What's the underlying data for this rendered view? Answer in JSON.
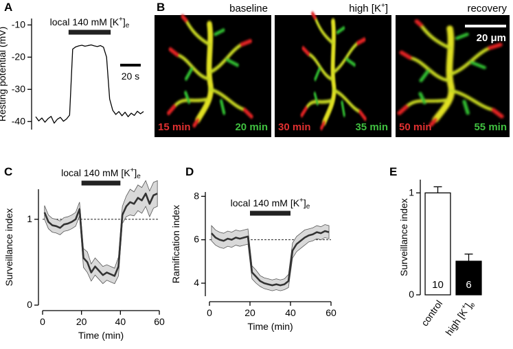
{
  "chart_data": [
    {
      "type": "line",
      "panel": "A",
      "ylabel": "Resting potential (mV)",
      "xlim": [
        0,
        107
      ],
      "ylim": [
        -42.5,
        -8
      ],
      "yticks": [
        -40,
        -30,
        -20,
        -10
      ],
      "x": [
        0,
        3,
        6,
        9,
        12,
        15,
        18,
        21,
        24,
        27,
        30,
        33,
        36,
        39,
        42,
        45,
        48,
        51,
        54,
        57,
        60,
        63,
        66,
        69,
        72,
        75,
        78,
        81,
        84,
        87,
        90,
        93,
        96,
        99,
        102,
        105
      ],
      "values": [
        -38.5,
        -39.8,
        -38.9,
        -40.2,
        -39.1,
        -38.4,
        -40.5,
        -39.3,
        -38.7,
        -39.9,
        -39.2,
        -38,
        -17.5,
        -16.8,
        -16.5,
        -16.3,
        -16.6,
        -16.4,
        -16.2,
        -16.5,
        -16.7,
        -16.4,
        -16.9,
        -20,
        -33,
        -36.5,
        -37.8,
        -36.9,
        -38.2,
        -37.1,
        -38.5,
        -37.4,
        -38.1,
        -36.8,
        -37.6,
        -36.9
      ],
      "color": "#000000",
      "stim": [
        32,
        73
      ],
      "annotation": "local 140 mM [K+]e",
      "scalebar": {
        "value": 20,
        "label": "20 s"
      }
    },
    {
      "type": "line",
      "panel": "C",
      "ylabel": "Surveillance index",
      "xlabel": "Time (min)",
      "xlim": [
        0,
        60
      ],
      "xticks": [
        0,
        20,
        40,
        60
      ],
      "ylim": [
        0,
        1.35
      ],
      "yticks": [
        0,
        1
      ],
      "ref": 1,
      "x": [
        1,
        3,
        5,
        7,
        9,
        11,
        13,
        15,
        17,
        19,
        21,
        23,
        25,
        27,
        29,
        31,
        33,
        35,
        37,
        39,
        41,
        43,
        45,
        47,
        49,
        51,
        53,
        55,
        57,
        59
      ],
      "values": [
        1.08,
        0.97,
        0.93,
        0.92,
        0.9,
        0.94,
        0.95,
        0.97,
        1.0,
        1.12,
        0.55,
        0.5,
        0.38,
        0.45,
        0.4,
        0.35,
        0.38,
        0.36,
        0.34,
        0.45,
        1.05,
        1.15,
        1.2,
        1.18,
        1.25,
        1.22,
        1.3,
        1.18,
        1.28,
        1.3
      ],
      "upper": [
        1.16,
        1.05,
        1.01,
        1.0,
        0.98,
        1.02,
        1.03,
        1.05,
        1.08,
        1.2,
        0.66,
        0.62,
        0.48,
        0.55,
        0.5,
        0.45,
        0.47,
        0.45,
        0.43,
        0.56,
        1.15,
        1.27,
        1.35,
        1.32,
        1.4,
        1.37,
        1.45,
        1.33,
        1.43,
        1.45
      ],
      "lower": [
        1.0,
        0.89,
        0.85,
        0.84,
        0.82,
        0.86,
        0.87,
        0.89,
        0.92,
        1.04,
        0.44,
        0.38,
        0.28,
        0.35,
        0.3,
        0.25,
        0.29,
        0.27,
        0.25,
        0.34,
        0.95,
        1.03,
        1.05,
        1.04,
        1.1,
        1.07,
        1.15,
        1.03,
        1.13,
        1.15
      ],
      "color": "#333333",
      "band_color": "#d9d9d9",
      "stim": [
        20,
        40
      ],
      "annotation": "local 140 mM [K+]e"
    },
    {
      "type": "line",
      "panel": "D",
      "ylabel": "Ramification index",
      "xlabel": "Time (min)",
      "xlim": [
        0,
        60
      ],
      "xticks": [
        0,
        20,
        40,
        60
      ],
      "ylim": [
        3.4,
        8.2
      ],
      "yticks": [
        4,
        6,
        8
      ],
      "ref": 6,
      "x": [
        1,
        3,
        5,
        7,
        9,
        11,
        13,
        15,
        17,
        19,
        21,
        23,
        25,
        27,
        29,
        31,
        33,
        35,
        37,
        39,
        41,
        43,
        45,
        47,
        49,
        51,
        53,
        55,
        57,
        59
      ],
      "values": [
        6.3,
        6.1,
        6.0,
        5.95,
        6.05,
        6.0,
        6.1,
        6.05,
        6.1,
        6.15,
        4.5,
        4.3,
        4.1,
        4.0,
        3.95,
        3.9,
        3.95,
        3.9,
        3.95,
        4.1,
        5.5,
        5.8,
        5.95,
        6.1,
        6.2,
        6.25,
        6.35,
        6.3,
        6.4,
        6.35
      ],
      "upper": [
        6.65,
        6.45,
        6.35,
        6.3,
        6.4,
        6.35,
        6.45,
        6.4,
        6.45,
        6.5,
        4.8,
        4.6,
        4.35,
        4.25,
        4.2,
        4.15,
        4.2,
        4.15,
        4.2,
        4.4,
        5.85,
        6.15,
        6.3,
        6.45,
        6.5,
        6.55,
        6.65,
        6.6,
        6.7,
        6.65
      ],
      "lower": [
        5.95,
        5.75,
        5.65,
        5.6,
        5.7,
        5.65,
        5.75,
        5.7,
        5.75,
        5.8,
        4.2,
        4.0,
        3.85,
        3.75,
        3.7,
        3.65,
        3.7,
        3.65,
        3.7,
        3.8,
        5.15,
        5.45,
        5.6,
        5.75,
        5.9,
        5.95,
        6.05,
        6.0,
        6.1,
        6.05
      ],
      "color": "#333333",
      "band_color": "#d9d9d9",
      "stim": [
        20,
        40
      ],
      "annotation": "local 140 mM [K+]e"
    },
    {
      "type": "bar",
      "panel": "E",
      "ylabel": "Surveillance index",
      "categories": [
        "control",
        "high [K+]e"
      ],
      "values": [
        1.0,
        0.33
      ],
      "errors": [
        0.06,
        0.07
      ],
      "n": [
        10,
        6
      ],
      "colors": [
        "#ffffff",
        "#000000"
      ],
      "ylim": [
        0,
        1.13
      ],
      "yticks": [
        0,
        1
      ]
    }
  ],
  "images": {
    "panel": "B",
    "scale_bar": "20 μm",
    "panels": [
      {
        "title": "baseline",
        "red": "15 min",
        "green": "20 min"
      },
      {
        "title": "high [K+]",
        "red": "30 min",
        "green": "35 min"
      },
      {
        "title": "recovery",
        "red": "50 min",
        "green": "55 min"
      }
    ]
  }
}
